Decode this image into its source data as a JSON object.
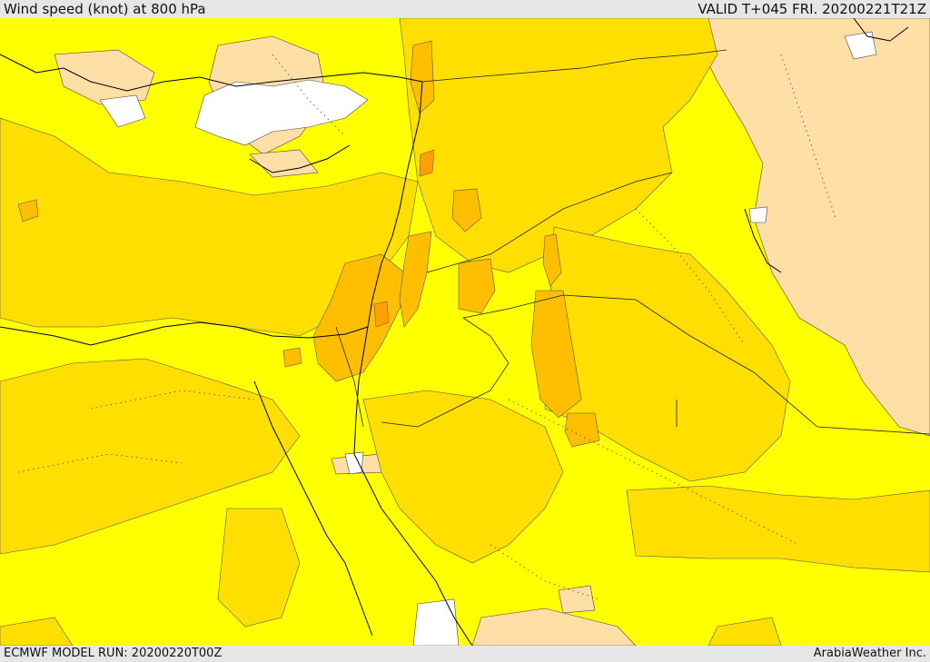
{
  "header": {
    "title": "Wind speed (knot) at 800 hPa",
    "valid": "VALID T+045 FRI. 20200221T21Z"
  },
  "footer": {
    "model_run": "ECMWF MODEL RUN: 20200220T00Z",
    "credit": "ArabiaWeather Inc."
  },
  "map": {
    "shading_colors": {
      "white": "#ffffff",
      "peach": "#ffdfa6",
      "yellow": "#ffff00",
      "gold": "#ffdf00",
      "amber": "#ffbf00",
      "orange": "#ffa000"
    }
  }
}
